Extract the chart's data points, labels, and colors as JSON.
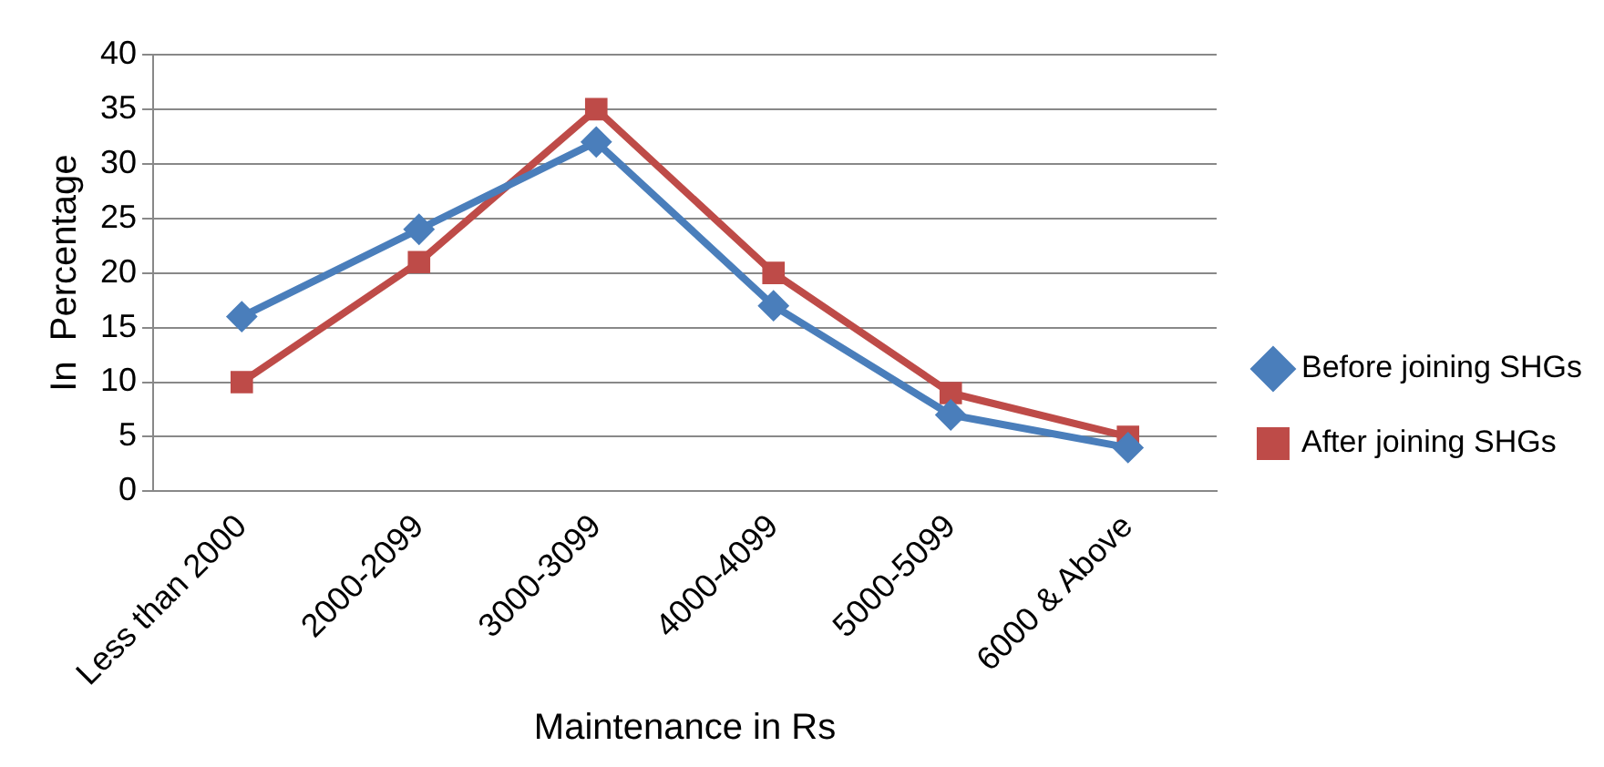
{
  "chart_data": {
    "type": "line",
    "xlabel": "Maintenance in Rs",
    "ylabel": "In  Percentage",
    "categories": [
      "Less than 2000",
      "2000-2099",
      "3000-3099",
      "4000-4099",
      "5000-5099",
      "6000 & Above"
    ],
    "series": [
      {
        "name": "Before joining SHGs",
        "color": "#4a7ebb",
        "marker": "diamond",
        "values": [
          16,
          24,
          32,
          17,
          7,
          4
        ]
      },
      {
        "name": "After joining SHGs",
        "color": "#be4b48",
        "marker": "square",
        "values": [
          10,
          21,
          35,
          20,
          9,
          5
        ]
      }
    ],
    "ylim": [
      0,
      40
    ],
    "yticks": [
      0,
      5,
      10,
      15,
      20,
      25,
      30,
      35,
      40
    ],
    "grid": "y",
    "legend": "right",
    "line_style": "solid"
  }
}
